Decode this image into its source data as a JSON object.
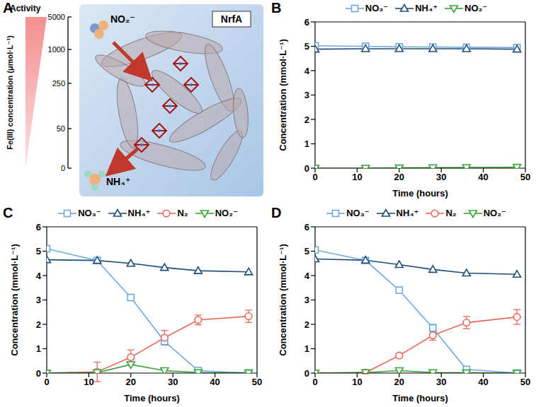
{
  "diagram": {
    "panel": "A",
    "activity_label": "Activity",
    "axis_label": "Fe(III) concentration (μmol·L⁻¹)",
    "axis_ticks": [
      0,
      50,
      250,
      1000,
      5000
    ],
    "protein": "NrfA",
    "substrate": "NO₂⁻",
    "product": "NH₄⁺"
  },
  "chart_data": [
    {
      "panel": "B",
      "type": "line",
      "x": [
        0,
        12,
        20,
        28,
        36,
        48
      ],
      "xlim": [
        0,
        50
      ],
      "xticks": [
        0,
        10,
        20,
        30,
        40,
        50
      ],
      "ylim": [
        0,
        6
      ],
      "yticks": [
        0,
        1,
        2,
        3,
        4,
        5,
        6
      ],
      "x_label": "Time (hours)",
      "y_label": "Concentration (mmol·L⁻¹)",
      "legend": "top",
      "grid": false,
      "series": [
        {
          "name": "NO₃⁻",
          "color": "#6fa8dc",
          "marker": "square",
          "values": [
            5.02,
            5.0,
            4.98,
            4.97,
            4.96,
            4.95
          ]
        },
        {
          "name": "NH₄⁺",
          "color": "#1f4e79",
          "marker": "triangle",
          "values": [
            4.88,
            4.9,
            4.9,
            4.9,
            4.9,
            4.88
          ]
        },
        {
          "name": "NO₂⁻",
          "color": "#3aa63a",
          "marker": "triangle-down",
          "values": [
            0,
            0,
            0.01,
            0.02,
            0.03,
            0.04
          ]
        }
      ]
    },
    {
      "panel": "C",
      "type": "line",
      "x": [
        0,
        12,
        20,
        28,
        36,
        48
      ],
      "xlim": [
        0,
        50
      ],
      "xticks": [
        0,
        10,
        20,
        30,
        40,
        50
      ],
      "ylim": [
        0,
        6
      ],
      "yticks": [
        0,
        1,
        2,
        3,
        4,
        5,
        6
      ],
      "x_label": "Time (hours)",
      "y_label": "Concentration (mmol·L⁻¹)",
      "legend": "top",
      "grid": false,
      "series": [
        {
          "name": "NO₃⁻",
          "color": "#6fa8dc",
          "marker": "square",
          "values": [
            5.1,
            4.62,
            3.1,
            1.3,
            0.1,
            0.0
          ]
        },
        {
          "name": "NH₄⁺",
          "color": "#1f4e79",
          "marker": "triangle",
          "values": [
            4.65,
            4.62,
            4.5,
            4.33,
            4.2,
            4.15
          ]
        },
        {
          "name": "N₂",
          "color": "#e8685a",
          "marker": "circle",
          "values": [
            0,
            0.05,
            0.65,
            1.45,
            2.18,
            2.33
          ],
          "errors": [
            0,
            0.4,
            0.3,
            0.3,
            0.2,
            0.25
          ]
        },
        {
          "name": "NO₂⁻",
          "color": "#3aa63a",
          "marker": "triangle-down",
          "values": [
            0,
            0.02,
            0.35,
            0.1,
            0.02,
            0.01
          ]
        }
      ]
    },
    {
      "panel": "D",
      "type": "line",
      "x": [
        0,
        12,
        20,
        28,
        36,
        48
      ],
      "xlim": [
        0,
        50
      ],
      "xticks": [
        0,
        10,
        20,
        30,
        40,
        50
      ],
      "ylim": [
        0,
        6
      ],
      "yticks": [
        0,
        1,
        2,
        3,
        4,
        5,
        6
      ],
      "x_label": "Time (hours)",
      "y_label": "Concentration (mmol·L⁻¹)",
      "legend": "top",
      "grid": false,
      "series": [
        {
          "name": "NO₃⁻",
          "color": "#6fa8dc",
          "marker": "square",
          "values": [
            5.05,
            4.62,
            3.4,
            1.85,
            0.15,
            0.0
          ],
          "errors": [
            0,
            0,
            0,
            0.15,
            0,
            0
          ]
        },
        {
          "name": "NH₄⁺",
          "color": "#1f4e79",
          "marker": "triangle",
          "values": [
            4.68,
            4.63,
            4.45,
            4.25,
            4.1,
            4.05
          ]
        },
        {
          "name": "N₂",
          "color": "#e8685a",
          "marker": "circle",
          "values": [
            0,
            0.02,
            0.72,
            1.55,
            2.07,
            2.3
          ],
          "errors": [
            0,
            0.05,
            0.1,
            0.2,
            0.25,
            0.3
          ]
        },
        {
          "name": "NO₂⁻",
          "color": "#3aa63a",
          "marker": "triangle-down",
          "values": [
            0,
            0.02,
            0.1,
            0.02,
            0.01,
            0.0
          ]
        }
      ]
    }
  ]
}
